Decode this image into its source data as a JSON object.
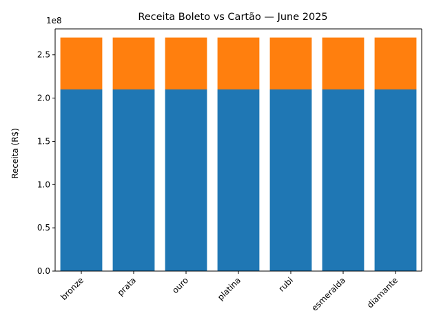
{
  "chart_data": {
    "type": "bar",
    "stacked": true,
    "title": "Receita Boleto vs Cartão — June 2025",
    "xlabel": "",
    "ylabel": "Receita (R$)",
    "y_scale_label": "1e8",
    "y_multiplier": 100000000,
    "ylim": [
      0,
      280000000
    ],
    "yticks": [
      0,
      50000000,
      100000000,
      150000000,
      200000000,
      250000000
    ],
    "ytick_labels": [
      "0.0",
      "0.5",
      "1.0",
      "1.5",
      "2.0",
      "2.5"
    ],
    "categories": [
      "bronze",
      "prata",
      "ouro",
      "platina",
      "rubi",
      "esmeralda",
      "diamante"
    ],
    "series": [
      {
        "color": "#1f77b4",
        "values": [
          210000000,
          210000000,
          210000000,
          210000000,
          210000000,
          210000000,
          210000000
        ]
      },
      {
        "color": "#ff7f0e",
        "values": [
          60000000,
          60000000,
          60000000,
          60000000,
          60000000,
          60000000,
          60000000
        ]
      }
    ],
    "grid": false,
    "legend": "none"
  }
}
